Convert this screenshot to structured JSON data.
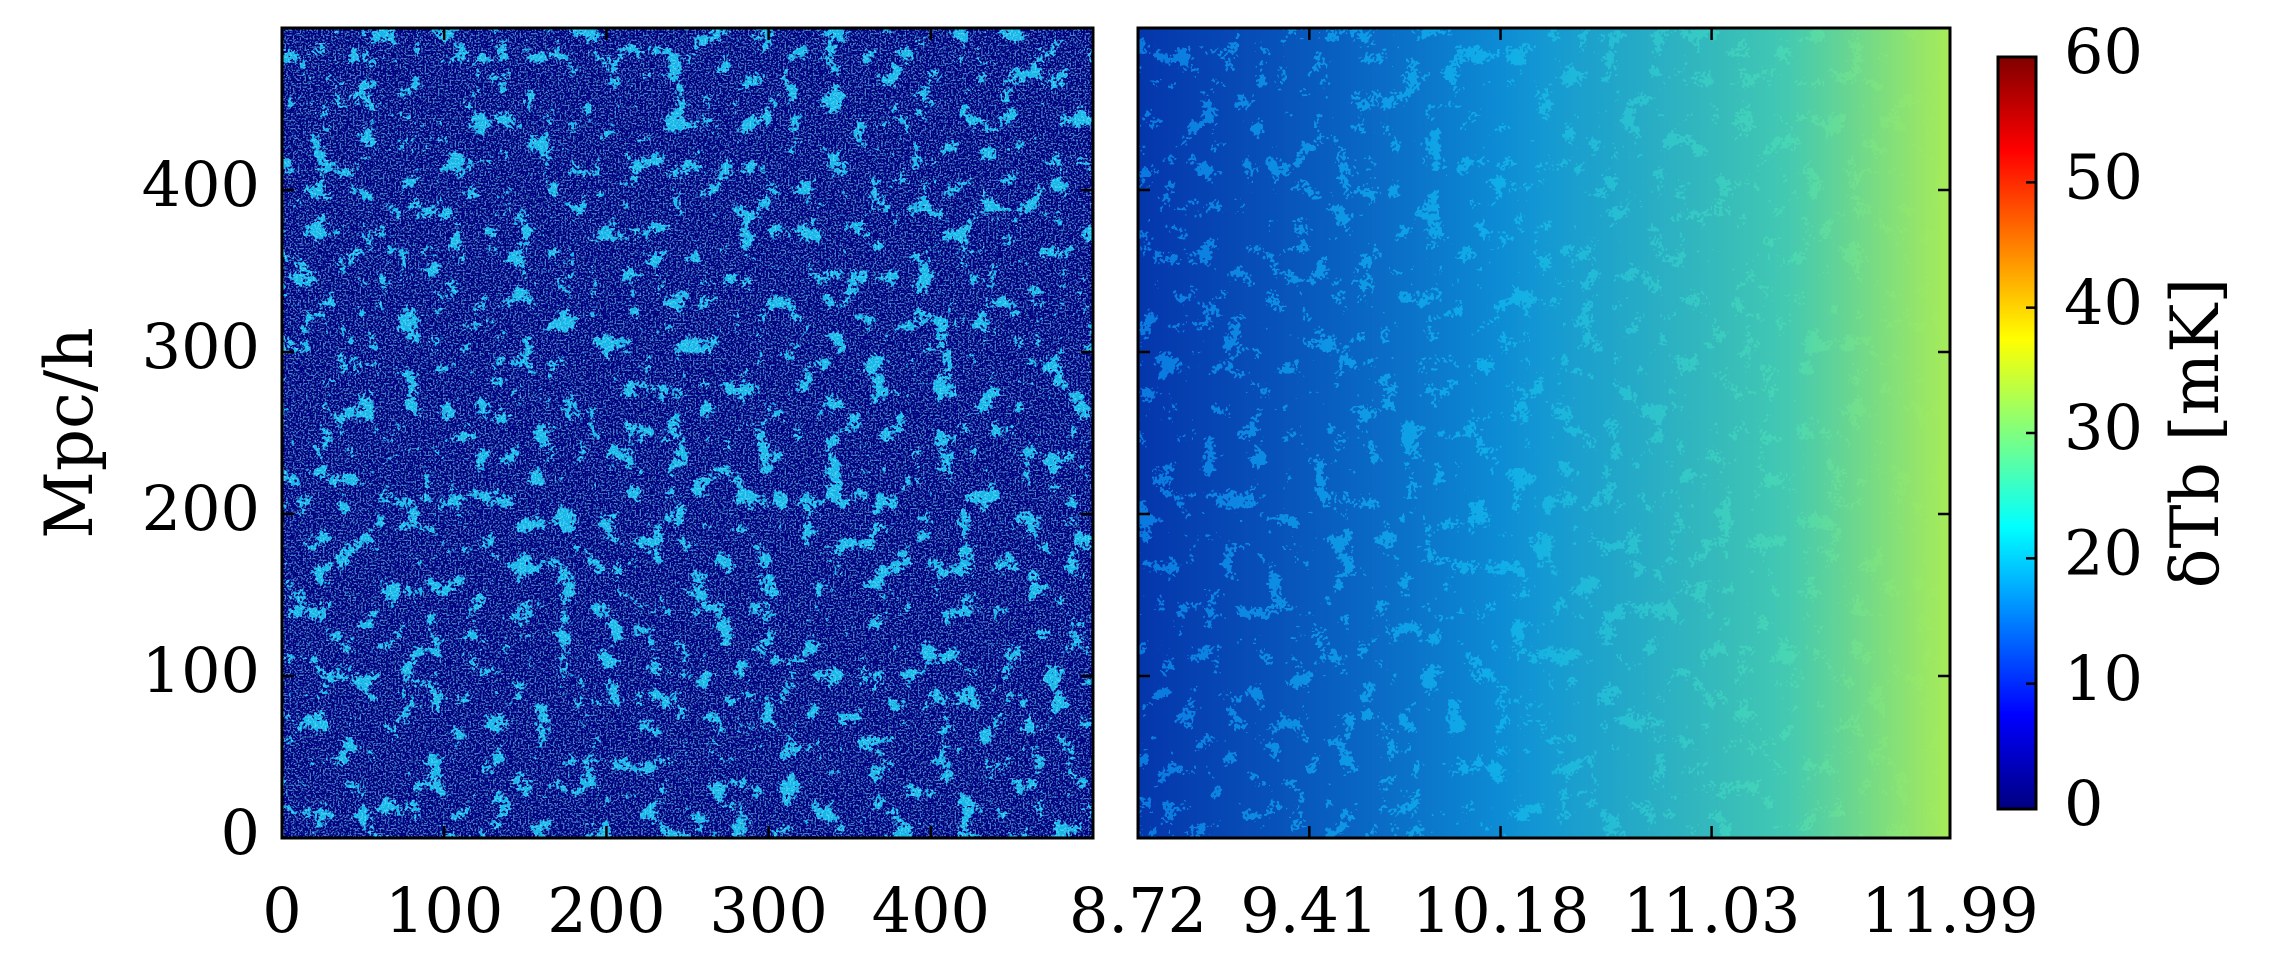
{
  "chart_data": [
    {
      "type": "heatmap",
      "panel": "left",
      "description_ref": "brightness temperature slice, comoving coordinates",
      "x_ticks": [
        "0",
        "100",
        "200",
        "300",
        "400"
      ],
      "x_tick_values": [
        0,
        100,
        200,
        300,
        400
      ],
      "xlim": [
        0,
        500
      ],
      "y_ticks": [
        "0",
        "100",
        "200",
        "300",
        "400"
      ],
      "y_tick_values": [
        0,
        100,
        200,
        300,
        400
      ],
      "ylim": [
        0,
        500
      ],
      "ylabel": "Mpc/h",
      "value_range": [
        0,
        60
      ],
      "trend": "uniform statistics across x"
    },
    {
      "type": "heatmap",
      "panel": "right",
      "description_ref": "brightness temperature slice, light-cone along redshift",
      "x_ticks": [
        "8.72",
        "9.41",
        "10.18",
        "11.03",
        "11.99"
      ],
      "x_tick_values": [
        8.72,
        9.41,
        10.18,
        11.03,
        11.99
      ],
      "xlim": [
        8.72,
        11.99
      ],
      "ylim": [
        0,
        500
      ],
      "value_range": [
        0,
        60
      ],
      "trend": "signal increases toward higher redshift (right)"
    }
  ],
  "colorbar": {
    "colormap": "jet",
    "min": 0,
    "max": 60,
    "ticks": [
      "0",
      "10",
      "20",
      "30",
      "40",
      "50",
      "60"
    ],
    "tick_values": [
      0,
      10,
      20,
      30,
      40,
      50,
      60
    ],
    "label": "δTb [mK]"
  },
  "colors": {
    "low": "#000080",
    "frame": "#000000"
  }
}
